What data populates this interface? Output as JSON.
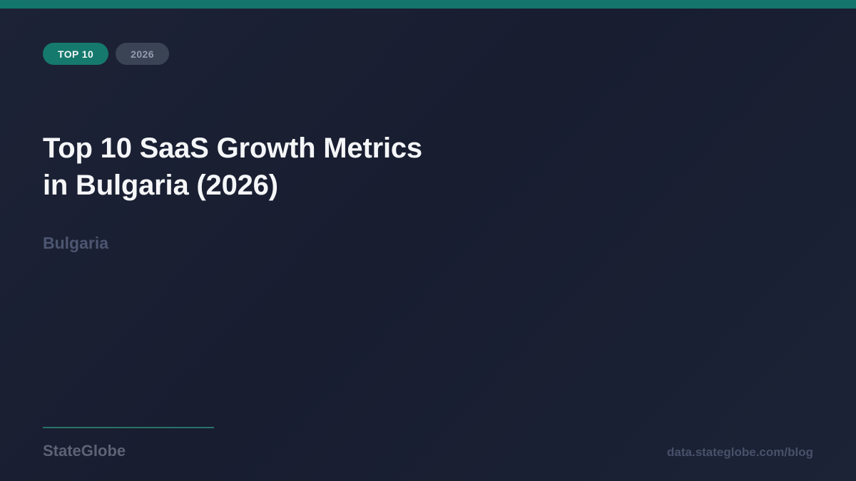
{
  "card": {
    "badges": [
      {
        "label": "TOP 10"
      },
      {
        "label": "2026"
      }
    ],
    "title_line1": "Top 10 SaaS Growth Metrics",
    "title_line2": "in Bulgaria (2026)",
    "subtitle": "Bulgaria",
    "brand": "StateGlobe",
    "footer_url": "data.stateglobe.com/blog",
    "colors": {
      "accent_teal": "#13756b",
      "badge_primary_bg": "#15796d",
      "badge_secondary_bg": "#3b4455",
      "badge_secondary_text": "#929cae",
      "background_navy": "#191e31",
      "title_text": "#f5f6f8",
      "subtitle_text": "#4d5671",
      "brand_text": "#5c6473",
      "url_text": "#47516a",
      "divider": "#2a7268"
    }
  }
}
